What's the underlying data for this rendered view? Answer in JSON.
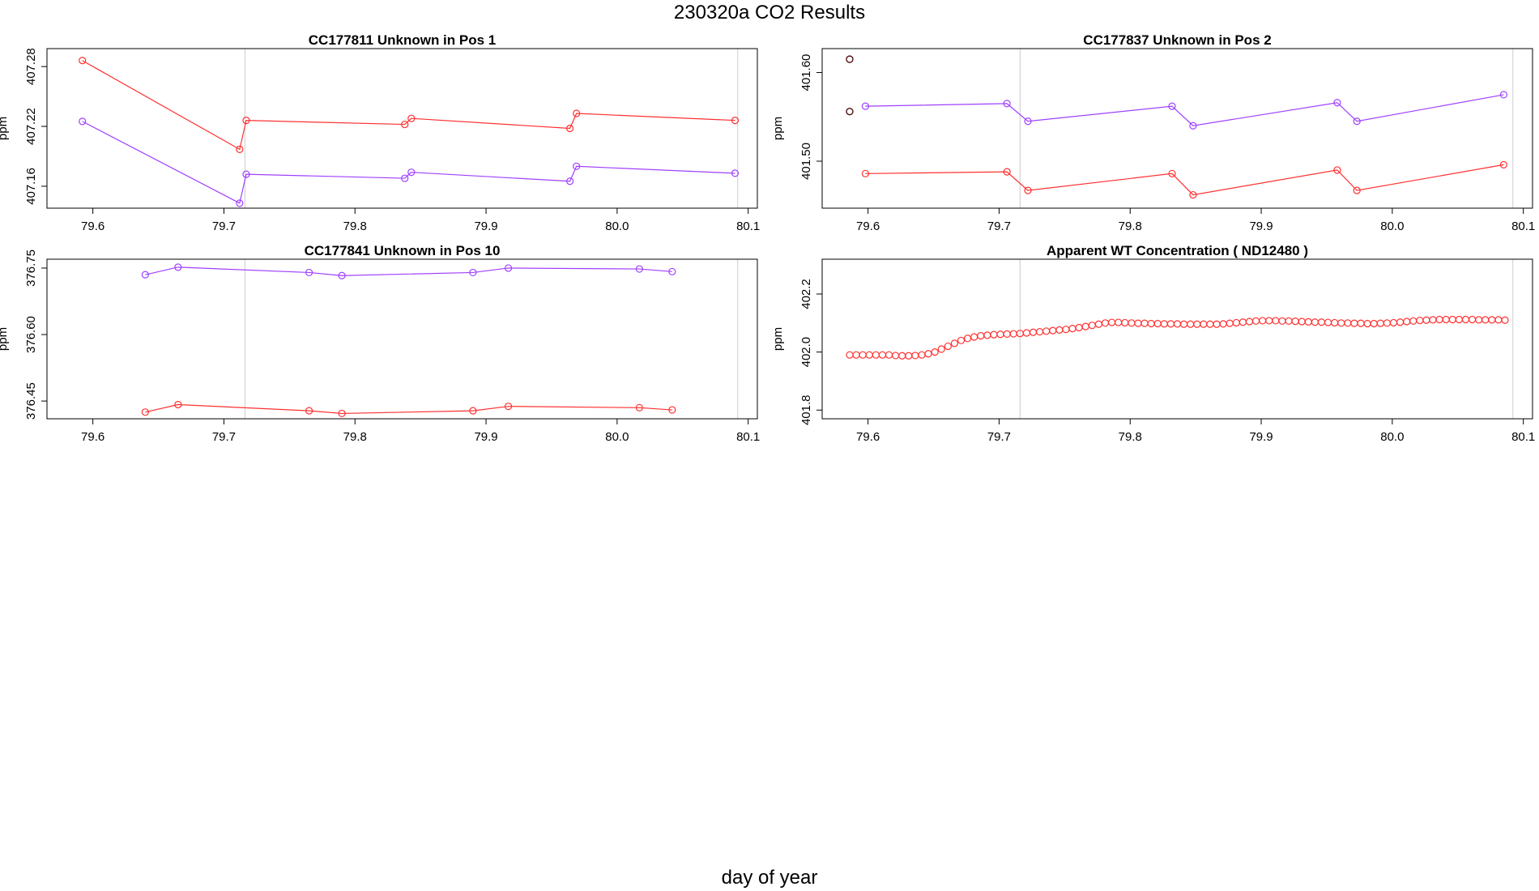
{
  "page": {
    "title": "230320a  CO2 Results",
    "xlabel": "day of year"
  },
  "colors": {
    "red": "#ff3030",
    "purple": "#a040ff",
    "vline": "#cccccc",
    "dark": "#501010"
  },
  "chart_data": [
    {
      "type": "line",
      "title": "CC177811    Unknown in Pos 1",
      "ylabel": "ppm",
      "xlim": [
        79.565,
        80.107
      ],
      "ylim": [
        407.138,
        407.298
      ],
      "xticks": [
        "79.6",
        "79.7",
        "79.8",
        "79.9",
        "80.0",
        "80.1"
      ],
      "yticks": [
        "407.16",
        "407.22",
        "407.28"
      ],
      "vlines": [
        79.716,
        80.092
      ],
      "series": [
        {
          "color": "red",
          "x": [
            79.592,
            79.712,
            79.717,
            79.838,
            79.843,
            79.964,
            79.969,
            80.09
          ],
          "y": [
            407.286,
            407.197,
            407.226,
            407.222,
            407.228,
            407.218,
            407.233,
            407.226
          ]
        },
        {
          "color": "purple",
          "x": [
            79.592,
            79.712,
            79.717,
            79.838,
            79.843,
            79.964,
            79.969,
            80.09
          ],
          "y": [
            407.225,
            407.143,
            407.172,
            407.168,
            407.174,
            407.165,
            407.18,
            407.173
          ]
        }
      ]
    },
    {
      "type": "line",
      "title": "CC177837    Unknown in Pos 2",
      "ylabel": "ppm",
      "xlim": [
        79.565,
        80.107
      ],
      "ylim": [
        401.447,
        401.627
      ],
      "xticks": [
        "79.6",
        "79.7",
        "79.8",
        "79.9",
        "80.0",
        "80.1"
      ],
      "yticks": [
        "401.50",
        "401.60"
      ],
      "vlines": [
        79.716,
        80.092
      ],
      "series": [
        {
          "color": "red",
          "x": [
            79.598,
            79.706,
            79.722,
            79.832,
            79.848,
            79.958,
            79.973,
            80.085
          ],
          "y": [
            401.486,
            401.488,
            401.467,
            401.486,
            401.462,
            401.49,
            401.467,
            401.496
          ]
        },
        {
          "color": "purple",
          "x": [
            79.598,
            79.706,
            79.722,
            79.832,
            79.848,
            79.958,
            79.973,
            80.085
          ],
          "y": [
            401.562,
            401.565,
            401.545,
            401.562,
            401.54,
            401.566,
            401.545,
            401.575
          ]
        }
      ],
      "isolated_points": [
        {
          "color": "dark",
          "x": 79.586,
          "y": 401.615
        },
        {
          "color": "dark",
          "x": 79.586,
          "y": 401.556
        }
      ]
    },
    {
      "type": "line",
      "title": "CC177841    Unknown in Pos 10",
      "ylabel": "ppm",
      "xlim": [
        79.565,
        80.107
      ],
      "ylim": [
        376.41,
        376.77
      ],
      "xticks": [
        "79.6",
        "79.7",
        "79.8",
        "79.9",
        "80.0",
        "80.1"
      ],
      "yticks": [
        "376.45",
        "376.60",
        "376.75"
      ],
      "vlines": [
        79.716,
        80.092
      ],
      "series": [
        {
          "color": "purple",
          "x": [
            79.64,
            79.665,
            79.765,
            79.79,
            79.89,
            79.917,
            80.017,
            80.042
          ],
          "y": [
            376.735,
            376.752,
            376.74,
            376.733,
            376.74,
            376.75,
            376.748,
            376.742
          ]
        },
        {
          "color": "red",
          "x": [
            79.64,
            79.665,
            79.765,
            79.79,
            79.89,
            79.917,
            80.017,
            80.042
          ],
          "y": [
            376.425,
            376.442,
            376.428,
            376.422,
            376.428,
            376.438,
            376.435,
            376.43
          ]
        }
      ]
    },
    {
      "type": "scatter",
      "title": "Apparent WT Concentration ( ND12480 )",
      "ylabel": "ppm",
      "xlim": [
        79.565,
        80.107
      ],
      "ylim": [
        401.77,
        402.32
      ],
      "xticks": [
        "79.6",
        "79.7",
        "79.8",
        "79.9",
        "80.0",
        "80.1"
      ],
      "yticks": [
        "401.8",
        "402.0",
        "402.2"
      ],
      "vlines": [
        79.716,
        80.092
      ],
      "series": [
        {
          "color": "red",
          "x_start": 79.586,
          "x_step": 0.005,
          "count": 101,
          "y": [
            401.99,
            401.99,
            401.99,
            401.99,
            401.99,
            401.99,
            401.99,
            401.988,
            401.987,
            401.987,
            401.988,
            401.99,
            401.994,
            402.0,
            402.01,
            402.02,
            402.03,
            402.04,
            402.047,
            402.052,
            402.056,
            402.058,
            402.06,
            402.061,
            402.062,
            402.063,
            402.064,
            402.066,
            402.068,
            402.07,
            402.072,
            402.074,
            402.076,
            402.078,
            402.081,
            402.084,
            402.088,
            402.092,
            402.096,
            402.1,
            402.102,
            402.102,
            402.101,
            402.1,
            402.099,
            402.099,
            402.098,
            402.098,
            402.097,
            402.097,
            402.097,
            402.096,
            402.096,
            402.096,
            402.096,
            402.096,
            402.096,
            402.097,
            402.099,
            402.101,
            402.103,
            402.105,
            402.107,
            402.108,
            402.108,
            402.108,
            402.107,
            402.107,
            402.106,
            402.105,
            402.104,
            402.103,
            402.103,
            402.102,
            402.101,
            402.1,
            402.1,
            402.099,
            402.099,
            402.098,
            402.098,
            402.099,
            402.1,
            402.101,
            402.103,
            402.105,
            402.107,
            402.109,
            402.11,
            402.111,
            402.112,
            402.112,
            402.112,
            402.112,
            402.112,
            402.112,
            402.111,
            402.111,
            402.111,
            402.111,
            402.11
          ]
        }
      ]
    }
  ]
}
